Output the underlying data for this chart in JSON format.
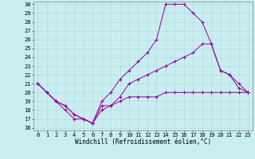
{
  "xlabel": "Windchill (Refroidissement éolien,°C)",
  "bg_color": "#c8eef0",
  "line_color": "#990099",
  "xlim": [
    -0.5,
    23.5
  ],
  "ylim": [
    15.7,
    30.3
  ],
  "yticks": [
    16,
    17,
    18,
    19,
    20,
    21,
    22,
    23,
    24,
    25,
    26,
    27,
    28,
    29,
    30
  ],
  "xticks": [
    0,
    1,
    2,
    3,
    4,
    5,
    6,
    7,
    8,
    9,
    10,
    11,
    12,
    13,
    14,
    15,
    16,
    17,
    18,
    19,
    20,
    21,
    22,
    23
  ],
  "line1_x": [
    0,
    1,
    2,
    3,
    4,
    5,
    6,
    7,
    8,
    9,
    10,
    11,
    12,
    13,
    14,
    15,
    16,
    17,
    18,
    19,
    20,
    21,
    22,
    23
  ],
  "line1_y": [
    21,
    20,
    19,
    18,
    17,
    17,
    16.5,
    19,
    20.0,
    21.5,
    22.5,
    23.5,
    24.5,
    26.0,
    30.0,
    30.0,
    30.0,
    29.0,
    28.0,
    25.5,
    22.5,
    22.0,
    21.0,
    20.0
  ],
  "line2_x": [
    0,
    1,
    2,
    3,
    4,
    5,
    6,
    7,
    8,
    9,
    10,
    11,
    12,
    13,
    14,
    15,
    16,
    17,
    18,
    19,
    20,
    21,
    22,
    23
  ],
  "line2_y": [
    21,
    20,
    19,
    18.5,
    17.5,
    17,
    16.5,
    18.5,
    18.5,
    19.5,
    21.0,
    21.5,
    22.0,
    22.5,
    23.0,
    23.5,
    24.0,
    24.5,
    25.5,
    25.5,
    22.5,
    22.0,
    20.5,
    20.0
  ],
  "line3_x": [
    0,
    1,
    2,
    3,
    4,
    5,
    6,
    7,
    8,
    9,
    10,
    11,
    12,
    13,
    14,
    15,
    16,
    17,
    18,
    19,
    20,
    21,
    22,
    23
  ],
  "line3_y": [
    21,
    20,
    19,
    18.5,
    17.5,
    17,
    16.5,
    18.0,
    18.5,
    19.0,
    19.5,
    19.5,
    19.5,
    19.5,
    20.0,
    20.0,
    20.0,
    20.0,
    20.0,
    20.0,
    20.0,
    20.0,
    20.0,
    20.0
  ],
  "tick_fontsize": 5.0,
  "xlabel_fontsize": 5.5,
  "grid_color": "#b0d8dc",
  "marker": "+",
  "markersize": 3,
  "linewidth": 0.7
}
